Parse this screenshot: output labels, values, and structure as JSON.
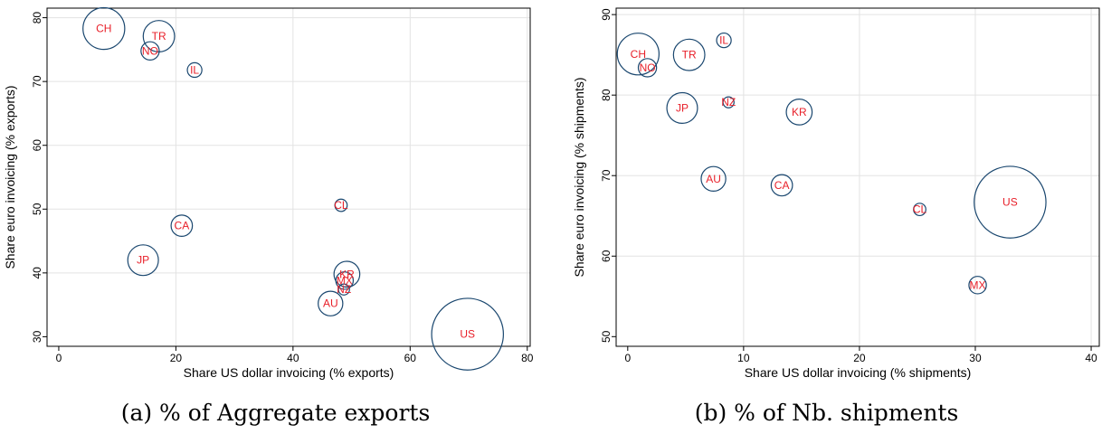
{
  "chart_data": [
    {
      "type": "scatter",
      "caption": "(a) % of Aggregate exports",
      "xlabel": "Share US dollar invoicing (% exports)",
      "ylabel": "Share euro invoicing (% exports)",
      "xlim": [
        -2,
        80.5
      ],
      "ylim": [
        28.5,
        81.5
      ],
      "xticks": [
        "0",
        "20",
        "40",
        "60",
        "80"
      ],
      "yticks": [
        "30",
        "40",
        "50",
        "60",
        "70",
        "80"
      ],
      "grid": true,
      "points": [
        {
          "label": "CH",
          "x": 7.7,
          "y": 78.3,
          "size": 11.5
        },
        {
          "label": "TR",
          "x": 17.1,
          "y": 77.1,
          "size": 6.5
        },
        {
          "label": "NO",
          "x": 15.6,
          "y": 74.8,
          "size": 2.2
        },
        {
          "label": "IL",
          "x": 23.2,
          "y": 71.8,
          "size": 1.4
        },
        {
          "label": "CL",
          "x": 48.2,
          "y": 50.6,
          "size": 1.0
        },
        {
          "label": "CA",
          "x": 21.0,
          "y": 47.4,
          "size": 3.0
        },
        {
          "label": "JP",
          "x": 14.4,
          "y": 42.0,
          "size": 6.2
        },
        {
          "label": "KR",
          "x": 49.2,
          "y": 39.8,
          "size": 4.4
        },
        {
          "label": "MX",
          "x": 48.8,
          "y": 38.8,
          "size": 2.0
        },
        {
          "label": "NZ",
          "x": 48.7,
          "y": 37.4,
          "size": 0.8
        },
        {
          "label": "AU",
          "x": 46.4,
          "y": 35.2,
          "size": 4.0
        },
        {
          "label": "US",
          "x": 69.8,
          "y": 30.4,
          "size": 34.0
        }
      ]
    },
    {
      "type": "scatter",
      "caption": "(b) % of Nb. shipments",
      "xlabel": "Share US dollar invoicing (% shipments)",
      "ylabel": "Share euro invoicing (% shipments)",
      "xlim": [
        -1,
        40.7
      ],
      "ylim": [
        48.8,
        90.8
      ],
      "xticks": [
        "0",
        "10",
        "20",
        "30",
        "40"
      ],
      "yticks": [
        "50",
        "60",
        "70",
        "80",
        "90"
      ],
      "grid": true,
      "points": [
        {
          "label": "IL",
          "x": 8.3,
          "y": 86.8,
          "size": 1.4
        },
        {
          "label": "CH",
          "x": 0.9,
          "y": 85.1,
          "size": 11.5
        },
        {
          "label": "TR",
          "x": 5.3,
          "y": 85.0,
          "size": 6.5
        },
        {
          "label": "NO",
          "x": 1.7,
          "y": 83.4,
          "size": 2.2
        },
        {
          "label": "NZ",
          "x": 8.7,
          "y": 79.1,
          "size": 0.8
        },
        {
          "label": "JP",
          "x": 4.7,
          "y": 78.4,
          "size": 6.2
        },
        {
          "label": "KR",
          "x": 14.8,
          "y": 77.9,
          "size": 4.4
        },
        {
          "label": "AU",
          "x": 7.4,
          "y": 69.6,
          "size": 4.0
        },
        {
          "label": "CA",
          "x": 13.3,
          "y": 68.8,
          "size": 3.0
        },
        {
          "label": "US",
          "x": 33.0,
          "y": 66.7,
          "size": 34.0
        },
        {
          "label": "CL",
          "x": 25.2,
          "y": 65.8,
          "size": 1.0
        },
        {
          "label": "MX",
          "x": 30.2,
          "y": 56.4,
          "size": 2.0
        }
      ]
    }
  ]
}
